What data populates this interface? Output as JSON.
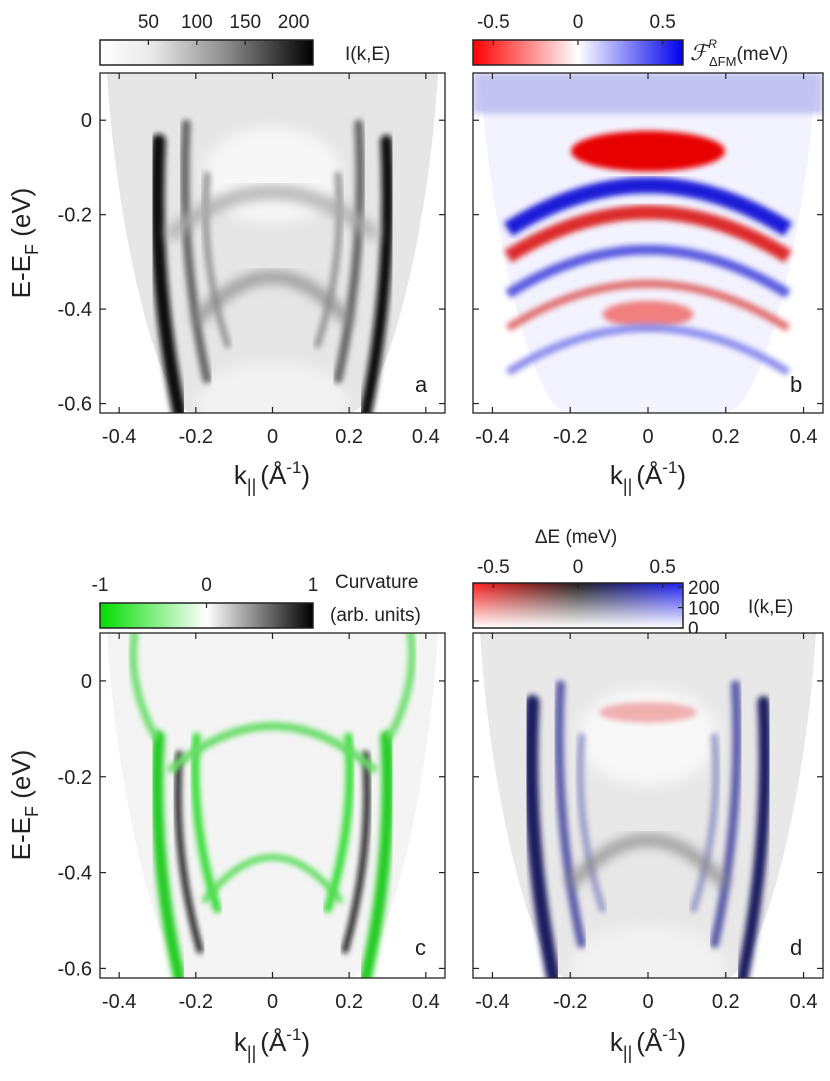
{
  "chart_data": [
    {
      "type": "heatmap",
      "panel_label": "a",
      "xlabel": "k",
      "xlabel_sub": "||",
      "xlabel_unit": "(Å",
      "xlabel_unit_sup": "-1",
      "xlabel_close": ")",
      "ylabel": "E-E",
      "ylabel_sub": "F",
      "ylabel_unit": " (eV)",
      "xlim": [
        -0.45,
        0.45
      ],
      "ylim": [
        -0.62,
        0.1
      ],
      "xticks": [
        -0.4,
        -0.2,
        0,
        0.2,
        0.4
      ],
      "yticks": [
        0,
        -0.2,
        -0.4,
        -0.6
      ],
      "colorbar": {
        "label": "I(k,E)",
        "ticks": [
          50,
          100,
          150,
          200
        ],
        "range": [
          0,
          220
        ],
        "colors": [
          "#ffffff",
          "#000000"
        ]
      },
      "bands": [
        {
          "k0": 0.27,
          "curv": 0.8,
          "shift": -0.62
        }
      ]
    },
    {
      "type": "heatmap",
      "panel_label": "b",
      "xlabel": "k",
      "xlabel_sub": "||",
      "xlabel_unit": "(Å",
      "xlabel_unit_sup": "-1",
      "xlabel_close": ")",
      "xlim": [
        -0.45,
        0.45
      ],
      "ylim": [
        -0.62,
        0.1
      ],
      "xticks": [
        -0.4,
        -0.2,
        0,
        0.2,
        0.4
      ],
      "yticks": [
        0,
        -0.2,
        -0.4,
        -0.6
      ],
      "colorbar": {
        "label_main": "ℱ",
        "label_sup": "R",
        "label_sub": "ΔFM",
        "label_unit": "(meV)",
        "ticks": [
          -0.5,
          0,
          0.5
        ],
        "range": [
          -0.62,
          0.62
        ],
        "colors": [
          "#ff0000",
          "#ffffff",
          "#0000ff"
        ]
      }
    },
    {
      "type": "heatmap",
      "panel_label": "c",
      "xlabel": "k",
      "xlabel_sub": "||",
      "xlabel_unit": "(Å",
      "xlabel_unit_sup": "-1",
      "xlabel_close": ")",
      "ylabel": "E-E",
      "ylabel_sub": "F",
      "ylabel_unit": " (eV)",
      "xlim": [
        -0.45,
        0.45
      ],
      "ylim": [
        -0.62,
        0.1
      ],
      "xticks": [
        -0.4,
        -0.2,
        0,
        0.2,
        0.4
      ],
      "yticks": [
        0,
        -0.2,
        -0.4,
        -0.6
      ],
      "colorbar": {
        "label_line1": "Curvature",
        "label_line2": "(arb. units)",
        "ticks": [
          -1,
          0,
          1
        ],
        "range": [
          -1,
          1
        ],
        "colors": [
          "#00dd00",
          "#ffffff",
          "#000000"
        ]
      }
    },
    {
      "type": "heatmap",
      "panel_label": "d",
      "xlabel": "k",
      "xlabel_sub": "||",
      "xlabel_unit": "(Å",
      "xlabel_unit_sup": "-1",
      "xlabel_close": ")",
      "xlim": [
        -0.45,
        0.45
      ],
      "ylim": [
        -0.62,
        0.1
      ],
      "xticks": [
        -0.4,
        -0.2,
        0,
        0.2,
        0.4
      ],
      "yticks": [
        0,
        -0.2,
        -0.4,
        -0.6
      ],
      "colorbar_2d": {
        "x_label": "ΔE (meV)",
        "x_ticks": [
          -0.5,
          0,
          0.5
        ],
        "x_range": [
          -0.62,
          0.62
        ],
        "y_label": "I(k,E)",
        "y_ticks": [
          200,
          100,
          0
        ],
        "y_range": [
          0,
          220
        ]
      }
    }
  ]
}
